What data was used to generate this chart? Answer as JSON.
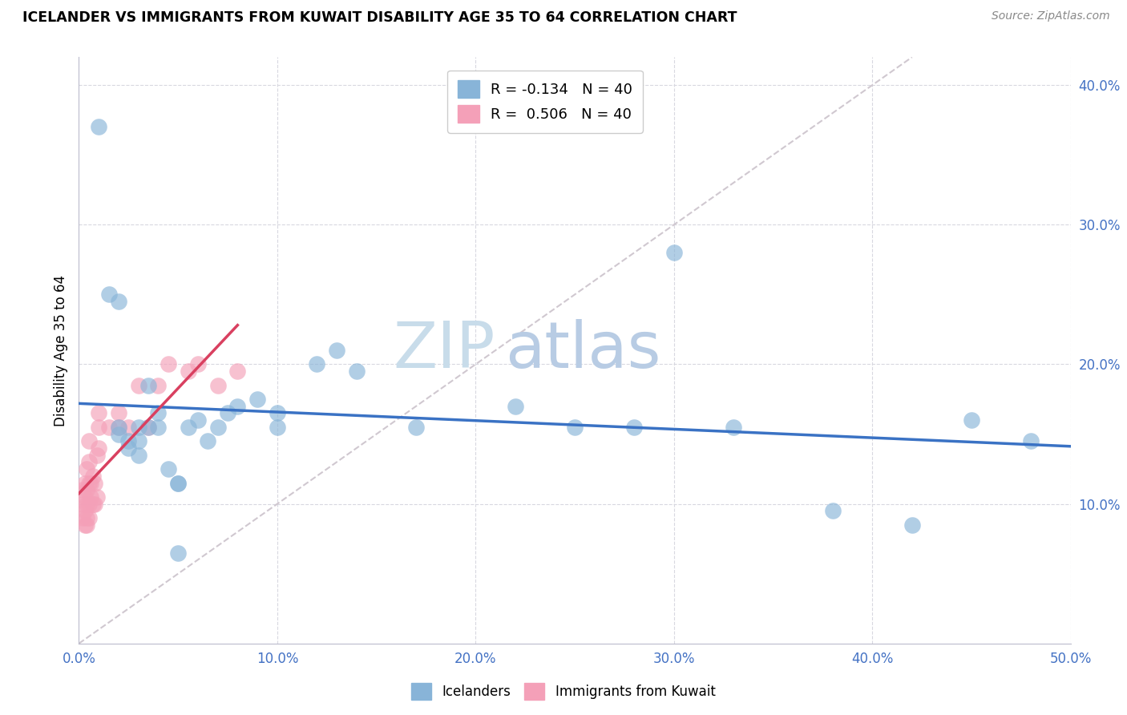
{
  "title": "ICELANDER VS IMMIGRANTS FROM KUWAIT DISABILITY AGE 35 TO 64 CORRELATION CHART",
  "source": "Source: ZipAtlas.com",
  "ylabel": "Disability Age 35 to 64",
  "xlim": [
    0.0,
    0.5
  ],
  "ylim": [
    0.0,
    0.42
  ],
  "x_ticks": [
    0.0,
    0.1,
    0.2,
    0.3,
    0.4,
    0.5
  ],
  "x_tick_labels": [
    "0.0%",
    "10.0%",
    "20.0%",
    "30.0%",
    "40.0%",
    "50.0%"
  ],
  "y_ticks_right": [
    0.1,
    0.2,
    0.3,
    0.4
  ],
  "y_tick_labels_right": [
    "10.0%",
    "20.0%",
    "30.0%",
    "40.0%"
  ],
  "legend_r1": "R = -0.134   N = 40",
  "legend_r2": "R =  0.506   N = 40",
  "icelanders_x": [
    0.02,
    0.02,
    0.025,
    0.025,
    0.03,
    0.03,
    0.03,
    0.035,
    0.035,
    0.04,
    0.04,
    0.045,
    0.05,
    0.05,
    0.055,
    0.06,
    0.065,
    0.07,
    0.075,
    0.08,
    0.09,
    0.1,
    0.1,
    0.12,
    0.13,
    0.14,
    0.17,
    0.22,
    0.25,
    0.28,
    0.3,
    0.33,
    0.38,
    0.42,
    0.45,
    0.48,
    0.01,
    0.015,
    0.02,
    0.05
  ],
  "icelanders_y": [
    0.155,
    0.15,
    0.14,
    0.145,
    0.155,
    0.145,
    0.135,
    0.155,
    0.185,
    0.155,
    0.165,
    0.125,
    0.115,
    0.115,
    0.155,
    0.16,
    0.145,
    0.155,
    0.165,
    0.17,
    0.175,
    0.155,
    0.165,
    0.2,
    0.21,
    0.195,
    0.155,
    0.17,
    0.155,
    0.155,
    0.28,
    0.155,
    0.095,
    0.085,
    0.16,
    0.145,
    0.37,
    0.25,
    0.245,
    0.065
  ],
  "kuwait_x": [
    0.002,
    0.002,
    0.002,
    0.003,
    0.003,
    0.003,
    0.003,
    0.004,
    0.004,
    0.004,
    0.004,
    0.004,
    0.005,
    0.005,
    0.005,
    0.005,
    0.005,
    0.006,
    0.006,
    0.007,
    0.007,
    0.008,
    0.008,
    0.009,
    0.009,
    0.01,
    0.01,
    0.01,
    0.015,
    0.02,
    0.02,
    0.025,
    0.03,
    0.035,
    0.04,
    0.045,
    0.055,
    0.06,
    0.07,
    0.08
  ],
  "kuwait_y": [
    0.09,
    0.1,
    0.11,
    0.085,
    0.095,
    0.105,
    0.115,
    0.085,
    0.09,
    0.1,
    0.11,
    0.125,
    0.09,
    0.1,
    0.115,
    0.13,
    0.145,
    0.105,
    0.115,
    0.1,
    0.12,
    0.1,
    0.115,
    0.105,
    0.135,
    0.14,
    0.155,
    0.165,
    0.155,
    0.155,
    0.165,
    0.155,
    0.185,
    0.155,
    0.185,
    0.2,
    0.195,
    0.2,
    0.185,
    0.195
  ],
  "blue_color": "#88b4d8",
  "pink_color": "#f4a0b8",
  "blue_line_color": "#3a72c4",
  "pink_line_color": "#d94060",
  "diagonal_line_color": "#d0c8d0",
  "watermark_zip": "ZIP",
  "watermark_atlas": "atlas",
  "watermark_color_zip": "#c8dcea",
  "watermark_color_atlas": "#b8cce4",
  "background_color": "#ffffff",
  "grid_color": "#d8d8e0"
}
